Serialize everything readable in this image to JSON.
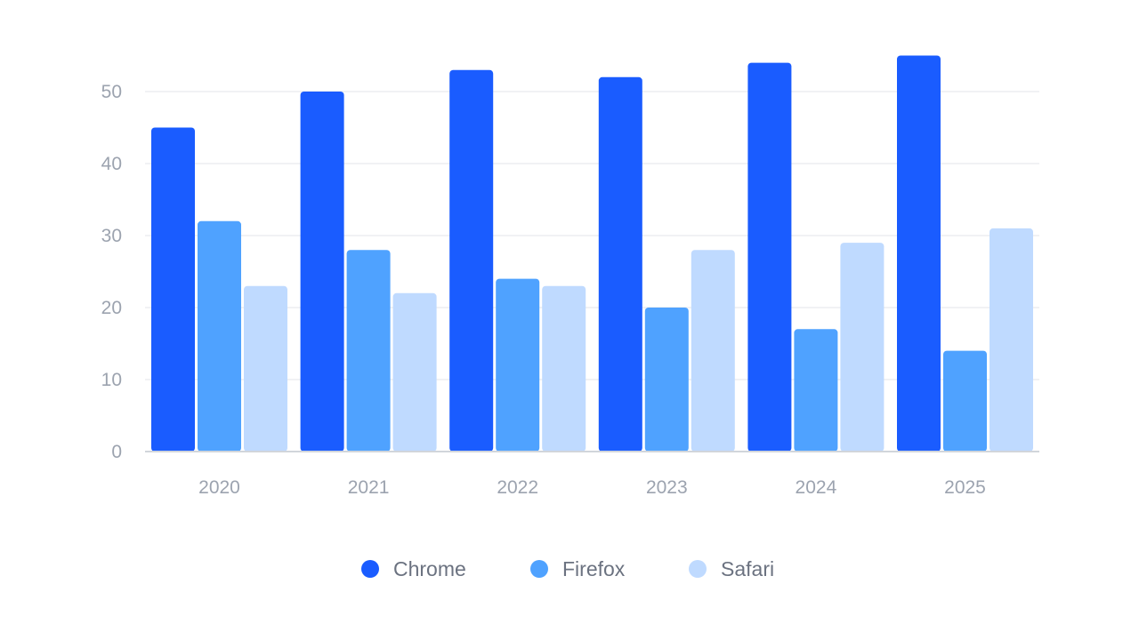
{
  "chart_data": {
    "type": "bar",
    "title": "",
    "xlabel": "",
    "ylabel": "",
    "categories": [
      "2020",
      "2021",
      "2022",
      "2023",
      "2024",
      "2025"
    ],
    "series": [
      {
        "name": "Chrome",
        "values": [
          45,
          50,
          53,
          52,
          54,
          55
        ],
        "color": "#1a5cff"
      },
      {
        "name": "Firefox",
        "values": [
          32,
          28,
          24,
          20,
          17,
          14
        ],
        "color": "#4fa2ff"
      },
      {
        "name": "Safari",
        "values": [
          23,
          22,
          23,
          28,
          29,
          31
        ],
        "color": "#bfdaff"
      }
    ],
    "ylim": [
      0,
      55
    ],
    "yticks": [
      0,
      10,
      20,
      30,
      40,
      50
    ],
    "grid": true,
    "legend_position": "bottom-center",
    "colors": {
      "gridline": "#f1f2f4",
      "baseline": "#d1d5db",
      "tick_text": "#9ca3af",
      "legend_text": "#6b7280"
    }
  }
}
